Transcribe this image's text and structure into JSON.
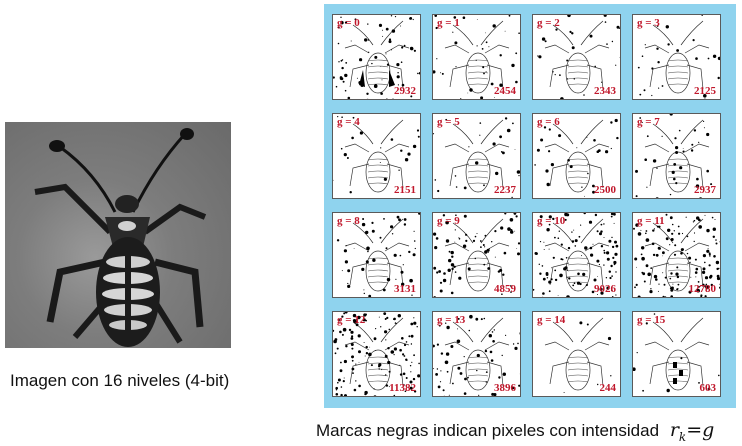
{
  "left_caption": "Imagen con 16 niveles (4-bit)",
  "right_caption": {
    "text": "Marcas negras indican pixeles con intensidad",
    "math_var": "r",
    "math_sub": "k",
    "math_rest": "=g"
  },
  "cells": [
    {
      "label": "g = 0",
      "count": "2932"
    },
    {
      "label": "g = 1",
      "count": "2454"
    },
    {
      "label": "g = 2",
      "count": "2343"
    },
    {
      "label": "g = 3",
      "count": "2125"
    },
    {
      "label": "g = 4",
      "count": "2151"
    },
    {
      "label": "g = 5",
      "count": "2237"
    },
    {
      "label": "g = 6",
      "count": "2500"
    },
    {
      "label": "g = 7",
      "count": "2937"
    },
    {
      "label": "g = 8",
      "count": "3131"
    },
    {
      "label": "g = 9",
      "count": "4859"
    },
    {
      "label": "g = 10",
      "count": "9026"
    },
    {
      "label": "g = 11",
      "count": "12780"
    },
    {
      "label": "g = 12",
      "count": "11382"
    },
    {
      "label": "g = 13",
      "count": "3896"
    },
    {
      "label": "g = 14",
      "count": "244"
    },
    {
      "label": "g = 15",
      "count": "603"
    }
  ]
}
